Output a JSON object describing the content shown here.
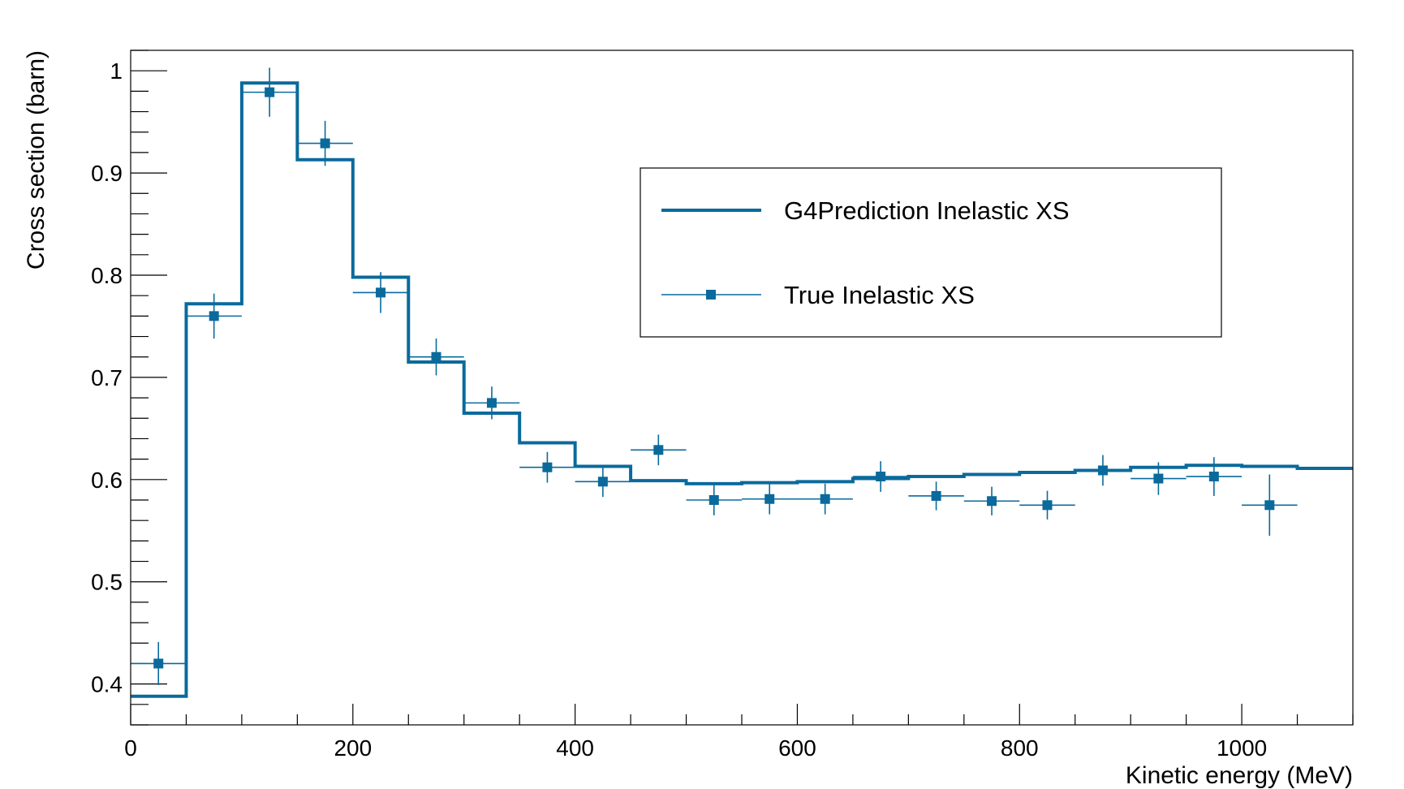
{
  "chart_data": {
    "type": "line",
    "xlabel": "Kinetic energy (MeV)",
    "ylabel": "Cross section (barn)",
    "xlim": [
      0,
      1100
    ],
    "ylim": [
      0.36,
      1.02
    ],
    "x_ticks": [
      0,
      200,
      400,
      600,
      800,
      1000
    ],
    "y_ticks": [
      0.4,
      0.5,
      0.6,
      0.7,
      0.8,
      0.9,
      1
    ],
    "x_tick_labels": [
      "0",
      "200",
      "400",
      "600",
      "800",
      "1000"
    ],
    "y_tick_labels": [
      "0.4",
      "0.5",
      "0.6",
      "0.7",
      "0.8",
      "0.9",
      "1"
    ],
    "legend_position": "top-right",
    "grid": false,
    "color": "#0a6a9c",
    "series": [
      {
        "name": "G4Prediction Inelastic XS",
        "style": "histogram-step",
        "bin_edges": [
          0,
          50,
          100,
          150,
          200,
          250,
          300,
          350,
          400,
          450,
          500,
          550,
          600,
          650,
          700,
          750,
          800,
          850,
          900,
          950,
          1000,
          1050,
          1100
        ],
        "values": [
          0.388,
          0.772,
          0.988,
          0.913,
          0.798,
          0.715,
          0.665,
          0.636,
          0.613,
          0.599,
          0.596,
          0.597,
          0.598,
          0.601,
          0.603,
          0.605,
          0.607,
          0.609,
          0.612,
          0.614,
          0.613,
          0.611
        ]
      },
      {
        "name": "True Inelastic XS",
        "style": "markers-with-errors",
        "points": [
          {
            "x": 25,
            "y": 0.42,
            "xerr": 25,
            "yerr": 0.021
          },
          {
            "x": 75,
            "y": 0.76,
            "xerr": 25,
            "yerr": 0.022
          },
          {
            "x": 125,
            "y": 0.979,
            "xerr": 25,
            "yerr": 0.024
          },
          {
            "x": 175,
            "y": 0.929,
            "xerr": 25,
            "yerr": 0.022
          },
          {
            "x": 225,
            "y": 0.783,
            "xerr": 25,
            "yerr": 0.02
          },
          {
            "x": 275,
            "y": 0.72,
            "xerr": 25,
            "yerr": 0.018
          },
          {
            "x": 325,
            "y": 0.675,
            "xerr": 25,
            "yerr": 0.016
          },
          {
            "x": 375,
            "y": 0.612,
            "xerr": 25,
            "yerr": 0.015
          },
          {
            "x": 425,
            "y": 0.598,
            "xerr": 25,
            "yerr": 0.015
          },
          {
            "x": 475,
            "y": 0.629,
            "xerr": 25,
            "yerr": 0.015
          },
          {
            "x": 525,
            "y": 0.58,
            "xerr": 25,
            "yerr": 0.015
          },
          {
            "x": 575,
            "y": 0.581,
            "xerr": 25,
            "yerr": 0.015
          },
          {
            "x": 625,
            "y": 0.581,
            "xerr": 25,
            "yerr": 0.015
          },
          {
            "x": 675,
            "y": 0.603,
            "xerr": 25,
            "yerr": 0.015
          },
          {
            "x": 725,
            "y": 0.584,
            "xerr": 25,
            "yerr": 0.014
          },
          {
            "x": 775,
            "y": 0.579,
            "xerr": 25,
            "yerr": 0.014
          },
          {
            "x": 825,
            "y": 0.575,
            "xerr": 25,
            "yerr": 0.014
          },
          {
            "x": 875,
            "y": 0.609,
            "xerr": 25,
            "yerr": 0.015
          },
          {
            "x": 925,
            "y": 0.601,
            "xerr": 25,
            "yerr": 0.016
          },
          {
            "x": 975,
            "y": 0.603,
            "xerr": 25,
            "yerr": 0.019
          },
          {
            "x": 1025,
            "y": 0.575,
            "xerr": 25,
            "yerr": 0.03
          }
        ]
      }
    ]
  }
}
